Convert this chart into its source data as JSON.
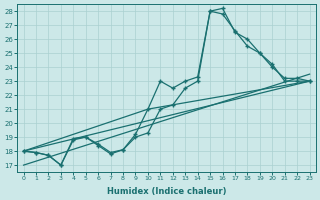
{
  "xlabel": "Humidex (Indice chaleur)",
  "bg_color": "#cce8e8",
  "grid_color": "#aad0d0",
  "line_color": "#1a7070",
  "xlim": [
    -0.5,
    23.5
  ],
  "ylim": [
    16.5,
    28.5
  ],
  "xticks": [
    0,
    1,
    2,
    3,
    4,
    5,
    6,
    7,
    8,
    9,
    10,
    11,
    12,
    13,
    14,
    15,
    16,
    17,
    18,
    19,
    20,
    21,
    22,
    23
  ],
  "yticks": [
    17,
    18,
    19,
    20,
    21,
    22,
    23,
    24,
    25,
    26,
    27,
    28
  ],
  "line1_x": [
    0,
    1,
    2,
    3,
    4,
    5,
    6,
    7,
    8,
    9,
    10,
    11,
    12,
    13,
    14,
    15,
    16,
    17,
    18,
    19,
    20,
    21,
    22,
    23
  ],
  "line1_y": [
    18.0,
    17.9,
    17.7,
    17.0,
    18.9,
    19.0,
    18.4,
    17.8,
    18.1,
    19.2,
    21.0,
    23.0,
    22.5,
    23.0,
    23.3,
    28.0,
    27.8,
    26.6,
    25.5,
    25.0,
    24.0,
    23.2,
    23.2,
    23.0
  ],
  "line2_x": [
    0,
    1,
    2,
    3,
    4,
    5,
    6,
    7,
    8,
    9,
    10,
    11,
    12,
    13,
    14,
    15,
    16,
    17,
    18,
    19,
    20,
    21,
    22,
    23
  ],
  "line2_y": [
    18.0,
    17.9,
    17.7,
    17.0,
    18.8,
    19.0,
    18.5,
    17.9,
    18.1,
    19.0,
    19.3,
    21.0,
    21.3,
    22.5,
    23.0,
    28.0,
    28.2,
    26.5,
    26.0,
    25.0,
    24.2,
    23.0,
    23.0,
    23.0
  ],
  "line3_x": [
    0,
    23
  ],
  "line3_y": [
    18.0,
    23.0
  ],
  "line4_x": [
    0,
    10,
    23
  ],
  "line4_y": [
    18.0,
    21.0,
    23.0
  ],
  "line5_x": [
    0,
    23
  ],
  "line5_y": [
    17.0,
    23.5
  ],
  "marker_size": 2.5,
  "linewidth": 0.9
}
